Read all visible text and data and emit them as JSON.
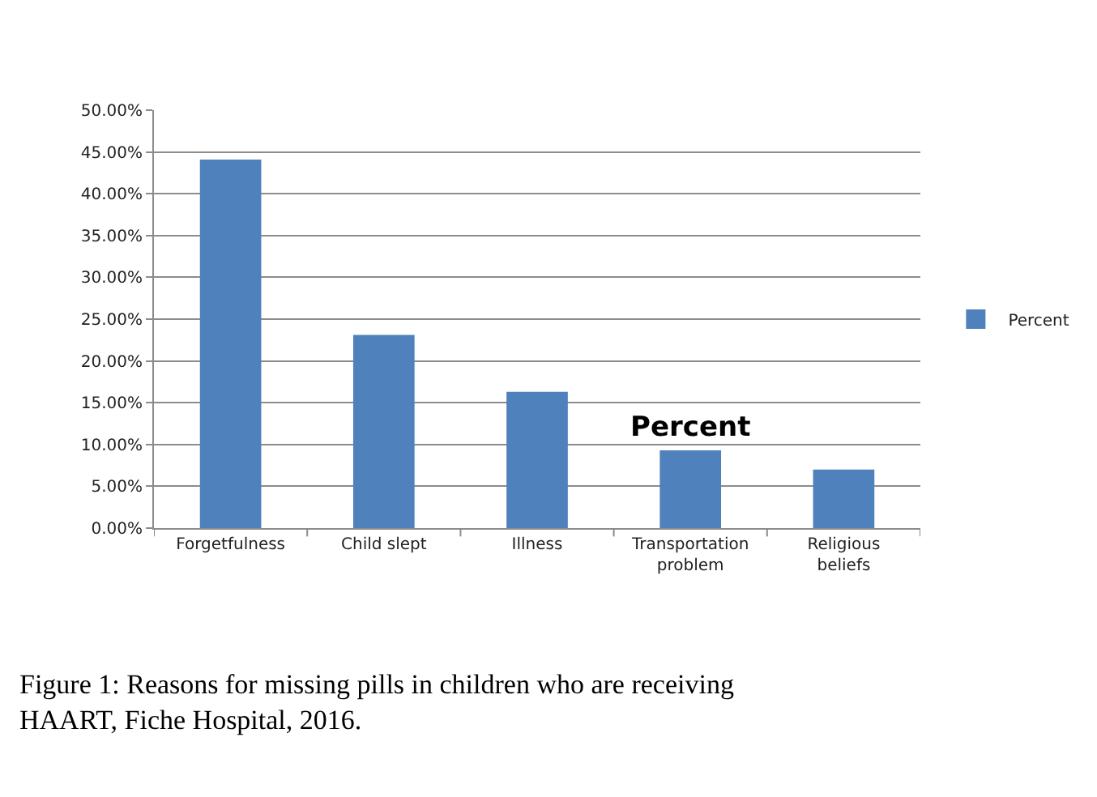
{
  "chart_data": {
    "type": "bar",
    "categories": [
      "Forgetfulness",
      "Child slept",
      "Illness",
      "Transportation problem",
      "Religious beliefs"
    ],
    "series": [
      {
        "name": "Percent",
        "color": "#4f81bd",
        "values": [
          44.1,
          23.1,
          16.3,
          9.3,
          7.0
        ]
      }
    ],
    "ylim": [
      0,
      50
    ],
    "yticks": [
      {
        "value": 0,
        "label": "0.00%"
      },
      {
        "value": 5,
        "label": "5.00%"
      },
      {
        "value": 10,
        "label": "10.00%"
      },
      {
        "value": 15,
        "label": "15.00%"
      },
      {
        "value": 20,
        "label": "20.00%"
      },
      {
        "value": 25,
        "label": "25.00%"
      },
      {
        "value": 30,
        "label": "30.00%"
      },
      {
        "value": 35,
        "label": "35.00%"
      },
      {
        "value": 40,
        "label": "40.00%"
      },
      {
        "value": 45,
        "label": "45.00%"
      },
      {
        "value": 50,
        "label": "50.00%"
      }
    ],
    "grid": "y",
    "legend": "right",
    "annotations": [
      "Percent",
      "Figure 1: Reasons for missing pills in children who are receiving HAART, Fiche Hospital, 2016."
    ]
  }
}
